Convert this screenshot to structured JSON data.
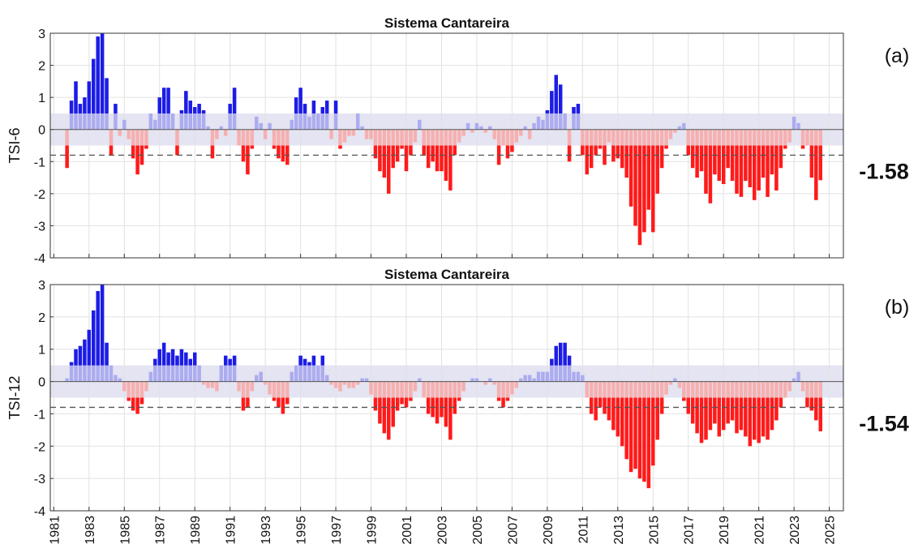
{
  "chart_data": [
    {
      "type": "bar",
      "title": "Sistema Cantareira",
      "ylabel": "TSI-6",
      "panel_label": "(a)",
      "current_label": "-1.58",
      "xlim": [
        1980.8,
        2025.8
      ],
      "xticks": [
        1981,
        1983,
        1985,
        1987,
        1989,
        1991,
        1993,
        1995,
        1997,
        1999,
        2001,
        2003,
        2005,
        2007,
        2009,
        2011,
        2013,
        2015,
        2017,
        2019,
        2021,
        2023,
        2025
      ],
      "xtick_labels": false,
      "ylim": [
        -4,
        3
      ],
      "yticks": [
        -4,
        -3,
        -2,
        -1,
        0,
        1,
        2,
        3
      ],
      "grid": true,
      "band": [
        -0.5,
        0.5
      ],
      "threshold": -0.8,
      "colors": {
        "wet": "#1c1ce6",
        "wet_light": "#acacf0",
        "dry_light": "#f6b0b0",
        "dry": "#ff1a1a",
        "band": "#e4e4f2"
      },
      "x": [
        1981.75,
        1982,
        1982.25,
        1982.5,
        1982.75,
        1983,
        1983.25,
        1983.5,
        1983.75,
        1984,
        1984.25,
        1984.5,
        1984.75,
        1985,
        1985.25,
        1985.5,
        1985.75,
        1986,
        1986.25,
        1986.5,
        1986.75,
        1987,
        1987.25,
        1987.5,
        1987.75,
        1988,
        1988.25,
        1988.5,
        1988.75,
        1989,
        1989.25,
        1989.5,
        1989.75,
        1990,
        1990.25,
        1990.5,
        1990.75,
        1991,
        1991.25,
        1991.5,
        1991.75,
        1992,
        1992.25,
        1992.5,
        1992.75,
        1993,
        1993.25,
        1993.5,
        1993.75,
        1994,
        1994.25,
        1994.5,
        1994.75,
        1995,
        1995.25,
        1995.5,
        1995.75,
        1996,
        1996.25,
        1996.5,
        1996.75,
        1997,
        1997.25,
        1997.5,
        1997.75,
        1998,
        1998.25,
        1998.5,
        1998.75,
        1999,
        1999.25,
        1999.5,
        1999.75,
        2000,
        2000.25,
        2000.5,
        2000.75,
        2001,
        2001.25,
        2001.5,
        2001.75,
        2002,
        2002.25,
        2002.5,
        2002.75,
        2003,
        2003.25,
        2003.5,
        2003.75,
        2004,
        2004.25,
        2004.5,
        2004.75,
        2005,
        2005.25,
        2005.5,
        2005.75,
        2006,
        2006.25,
        2006.5,
        2006.75,
        2007,
        2007.25,
        2007.5,
        2007.75,
        2008,
        2008.25,
        2008.5,
        2008.75,
        2009,
        2009.25,
        2009.5,
        2009.75,
        2010,
        2010.25,
        2010.5,
        2010.75,
        2011,
        2011.25,
        2011.5,
        2011.75,
        2012,
        2012.25,
        2012.5,
        2012.75,
        2013,
        2013.25,
        2013.5,
        2013.75,
        2014,
        2014.25,
        2014.5,
        2014.75,
        2015,
        2015.25,
        2015.5,
        2015.75,
        2016,
        2016.25,
        2016.5,
        2016.75,
        2017,
        2017.25,
        2017.5,
        2017.75,
        2018,
        2018.25,
        2018.5,
        2018.75,
        2019,
        2019.25,
        2019.5,
        2019.75,
        2020,
        2020.25,
        2020.5,
        2020.75,
        2021,
        2021.25,
        2021.5,
        2021.75,
        2022,
        2022.25,
        2022.5,
        2022.75,
        2023,
        2023.25,
        2023.5,
        2023.75,
        2024,
        2024.25,
        2024.5
      ],
      "values": [
        -1.2,
        0.9,
        1.5,
        0.8,
        1.0,
        1.5,
        2.2,
        2.9,
        3.0,
        1.6,
        -0.8,
        0.8,
        -0.2,
        0.3,
        -0.3,
        -0.9,
        -1.4,
        -1.1,
        -0.6,
        0.5,
        0.3,
        1.0,
        1.3,
        1.3,
        0.5,
        -0.8,
        0.6,
        1.2,
        0.9,
        0.7,
        0.8,
        0.6,
        0.1,
        -0.9,
        -0.3,
        0.1,
        -0.2,
        0.8,
        1.3,
        -0.5,
        -1.0,
        -1.4,
        -0.6,
        0.4,
        0.2,
        -0.3,
        0.2,
        -0.6,
        -0.9,
        -1.0,
        -1.1,
        0.3,
        1.0,
        1.3,
        0.8,
        0.4,
        0.9,
        0.5,
        0.7,
        0.9,
        -0.3,
        0.9,
        -0.6,
        -0.4,
        -0.2,
        -0.2,
        0.5,
        0.1,
        -0.3,
        -0.3,
        -0.9,
        -1.3,
        -1.5,
        -2.0,
        -1.2,
        -1.0,
        -0.6,
        -1.3,
        -0.8,
        -0.4,
        0.3,
        -0.8,
        -1.2,
        -1.0,
        -1.3,
        -1.3,
        -1.6,
        -1.9,
        -0.8,
        -0.4,
        -0.2,
        0.2,
        -0.1,
        0.2,
        0.1,
        -0.1,
        0.1,
        -0.3,
        -1.1,
        -0.5,
        -0.9,
        -0.7,
        -0.4,
        -0.2,
        0.1,
        -0.3,
        0.2,
        0.4,
        0.3,
        0.6,
        1.2,
        1.7,
        1.4,
        0.5,
        -1.0,
        0.7,
        0.8,
        -0.8,
        -1.4,
        -1.2,
        -0.8,
        -0.6,
        -1.1,
        -0.4,
        -1.0,
        -0.9,
        -1.2,
        -1.5,
        -2.4,
        -3.0,
        -3.6,
        -3.2,
        -2.5,
        -3.2,
        -2.0,
        -1.2,
        -0.6,
        -0.3,
        -0.1,
        0.1,
        0.2,
        -0.8,
        -1.2,
        -1.5,
        -1.3,
        -2.0,
        -2.3,
        -1.4,
        -1.6,
        -1.7,
        -1.2,
        -1.6,
        -2.0,
        -2.1,
        -1.6,
        -1.8,
        -2.2,
        -1.9,
        -1.5,
        -2.1,
        -1.4,
        -1.9,
        -1.2,
        -0.6,
        -0.4,
        0.4,
        0.2,
        -0.6,
        -0.5,
        -1.5,
        -2.2,
        -1.58
      ]
    },
    {
      "type": "bar",
      "title": "Sistema Cantareira",
      "ylabel": "TSI-12",
      "panel_label": "(b)",
      "current_label": "-1.54",
      "xlim": [
        1980.8,
        2025.8
      ],
      "xticks": [
        1981,
        1983,
        1985,
        1987,
        1989,
        1991,
        1993,
        1995,
        1997,
        1999,
        2001,
        2003,
        2005,
        2007,
        2009,
        2011,
        2013,
        2015,
        2017,
        2019,
        2021,
        2023,
        2025
      ],
      "xtick_labels": true,
      "ylim": [
        -4,
        3
      ],
      "yticks": [
        -4,
        -3,
        -2,
        -1,
        0,
        1,
        2,
        3
      ],
      "grid": true,
      "band": [
        -0.5,
        0.5
      ],
      "threshold": -0.8,
      "colors": {
        "wet": "#1c1ce6",
        "wet_light": "#acacf0",
        "dry_light": "#f6b0b0",
        "dry": "#ff1a1a",
        "band": "#e4e4f2"
      },
      "x": [
        1981.75,
        1982,
        1982.25,
        1982.5,
        1982.75,
        1983,
        1983.25,
        1983.5,
        1983.75,
        1984,
        1984.25,
        1984.5,
        1984.75,
        1985,
        1985.25,
        1985.5,
        1985.75,
        1986,
        1986.25,
        1986.5,
        1986.75,
        1987,
        1987.25,
        1987.5,
        1987.75,
        1988,
        1988.25,
        1988.5,
        1988.75,
        1989,
        1989.25,
        1989.5,
        1989.75,
        1990,
        1990.25,
        1990.5,
        1990.75,
        1991,
        1991.25,
        1991.5,
        1991.75,
        1992,
        1992.25,
        1992.5,
        1992.75,
        1993,
        1993.25,
        1993.5,
        1993.75,
        1994,
        1994.25,
        1994.5,
        1994.75,
        1995,
        1995.25,
        1995.5,
        1995.75,
        1996,
        1996.25,
        1996.5,
        1996.75,
        1997,
        1997.25,
        1997.5,
        1997.75,
        1998,
        1998.25,
        1998.5,
        1998.75,
        1999,
        1999.25,
        1999.5,
        1999.75,
        2000,
        2000.25,
        2000.5,
        2000.75,
        2001,
        2001.25,
        2001.5,
        2001.75,
        2002,
        2002.25,
        2002.5,
        2002.75,
        2003,
        2003.25,
        2003.5,
        2003.75,
        2004,
        2004.25,
        2004.5,
        2004.75,
        2005,
        2005.25,
        2005.5,
        2005.75,
        2006,
        2006.25,
        2006.5,
        2006.75,
        2007,
        2007.25,
        2007.5,
        2007.75,
        2008,
        2008.25,
        2008.5,
        2008.75,
        2009,
        2009.25,
        2009.5,
        2009.75,
        2010,
        2010.25,
        2010.5,
        2010.75,
        2011,
        2011.25,
        2011.5,
        2011.75,
        2012,
        2012.25,
        2012.5,
        2012.75,
        2013,
        2013.25,
        2013.5,
        2013.75,
        2014,
        2014.25,
        2014.5,
        2014.75,
        2015,
        2015.25,
        2015.5,
        2015.75,
        2016,
        2016.25,
        2016.5,
        2016.75,
        2017,
        2017.25,
        2017.5,
        2017.75,
        2018,
        2018.25,
        2018.5,
        2018.75,
        2019,
        2019.25,
        2019.5,
        2019.75,
        2020,
        2020.25,
        2020.5,
        2020.75,
        2021,
        2021.25,
        2021.5,
        2021.75,
        2022,
        2022.25,
        2022.5,
        2022.75,
        2023,
        2023.25,
        2023.5,
        2023.75,
        2024,
        2024.25,
        2024.5
      ],
      "values": [
        0.1,
        0.6,
        1.0,
        1.1,
        1.3,
        1.6,
        2.2,
        2.8,
        3.0,
        1.2,
        0.5,
        0.2,
        0.1,
        -0.3,
        -0.6,
        -0.9,
        -1.0,
        -0.7,
        -0.3,
        0.3,
        0.7,
        1.0,
        1.2,
        0.9,
        1.0,
        0.8,
        1.0,
        0.9,
        0.7,
        0.9,
        0.5,
        -0.1,
        -0.2,
        -0.2,
        -0.3,
        0.5,
        0.8,
        0.7,
        0.8,
        -0.3,
        -0.9,
        -0.8,
        -0.3,
        0.2,
        0.3,
        -0.1,
        -0.4,
        -0.6,
        -0.8,
        -1.0,
        -0.7,
        0.3,
        0.5,
        0.8,
        0.7,
        0.6,
        0.8,
        0.5,
        0.8,
        0.2,
        -0.1,
        -0.2,
        -0.3,
        -0.1,
        -0.2,
        -0.2,
        -0.1,
        0.1,
        0.1,
        -0.4,
        -0.9,
        -1.3,
        -1.6,
        -1.8,
        -1.4,
        -0.9,
        -0.7,
        -0.8,
        -0.6,
        -0.3,
        0.1,
        -0.5,
        -1.0,
        -1.1,
        -1.3,
        -1.1,
        -1.4,
        -1.8,
        -1.0,
        -0.6,
        -0.3,
        0.0,
        0.1,
        0.1,
        0.0,
        -0.1,
        0.1,
        -0.1,
        -0.6,
        -0.8,
        -0.6,
        -0.4,
        -0.2,
        0.1,
        0.2,
        0.2,
        0.1,
        0.3,
        0.3,
        0.3,
        0.7,
        1.1,
        1.2,
        1.2,
        0.8,
        0.3,
        0.3,
        0.2,
        -0.5,
        -1.0,
        -1.2,
        -0.8,
        -1.0,
        -1.2,
        -1.5,
        -1.7,
        -2.0,
        -2.4,
        -2.8,
        -2.7,
        -3.0,
        -3.1,
        -3.3,
        -2.6,
        -1.8,
        -1.0,
        -0.4,
        -0.1,
        0.1,
        -0.2,
        -0.6,
        -1.0,
        -1.3,
        -1.6,
        -1.9,
        -1.8,
        -1.5,
        -1.3,
        -1.7,
        -1.5,
        -1.3,
        -1.2,
        -1.6,
        -1.5,
        -1.7,
        -2.0,
        -1.8,
        -1.9,
        -1.7,
        -1.8,
        -1.5,
        -1.2,
        -0.8,
        -0.5,
        -0.3,
        0.1,
        0.3,
        -0.3,
        -0.8,
        -0.9,
        -1.2,
        -1.54
      ]
    }
  ]
}
